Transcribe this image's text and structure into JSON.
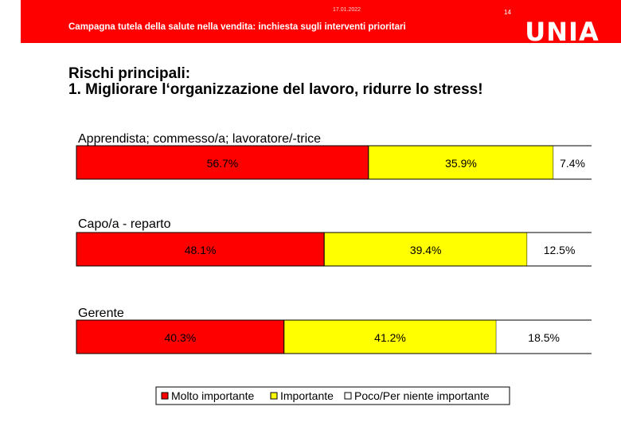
{
  "header": {
    "date": "17.01.2022",
    "page_number": "14",
    "title": "Campagna tutela della salute nella vendita: inchiesta sugli interventi prioritari",
    "logo_text": "UNIA",
    "band_color": "#ff0000"
  },
  "title_line1": "Rischi principali:",
  "title_line2": "1. Migliorare l‘organizzazione del lavoro, ridurre lo stress!",
  "chart_data": {
    "type": "bar",
    "orientation": "horizontal",
    "stacked": true,
    "unit": "%",
    "xlim": [
      0,
      100
    ],
    "grid": false,
    "legend_position": "bottom",
    "categories": [
      "Apprendista; commesso/a; lavoratore/-trice",
      "Capo/a - reparto",
      "Gerente"
    ],
    "series": [
      {
        "name": "Molto importante",
        "color": "#ff0000",
        "values": [
          56.7,
          48.1,
          40.3
        ],
        "labels": [
          "56.7%",
          "48.1%",
          "40.3%"
        ]
      },
      {
        "name": "Importante",
        "color": "#ffff00",
        "values": [
          35.9,
          39.4,
          41.2
        ],
        "labels": [
          "35.9%",
          "39.4%",
          "41.2%"
        ]
      },
      {
        "name": "Poco/Per niente importante",
        "color": "#ffffff",
        "values": [
          7.4,
          12.5,
          18.5
        ],
        "labels": [
          "7.4%",
          "12.5%",
          "18.5%"
        ]
      }
    ]
  }
}
